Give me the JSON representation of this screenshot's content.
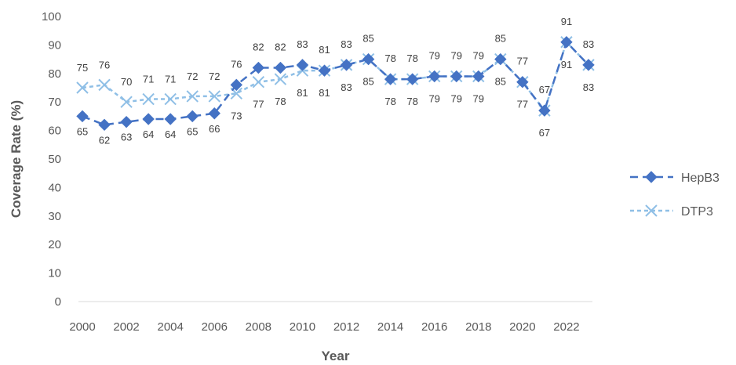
{
  "chart_data": {
    "type": "line",
    "title": "",
    "xlabel": "Year",
    "ylabel": "Coverage Rate (%)",
    "x": [
      2000,
      2001,
      2002,
      2003,
      2004,
      2005,
      2006,
      2007,
      2008,
      2009,
      2010,
      2011,
      2012,
      2013,
      2014,
      2015,
      2016,
      2017,
      2018,
      2019,
      2020,
      2021,
      2022,
      2023
    ],
    "x_tick_labels": [
      "2000",
      "2002",
      "2004",
      "2006",
      "2008",
      "2010",
      "2012",
      "2014",
      "2016",
      "2018",
      "2020",
      "2022"
    ],
    "y_tick_labels": [
      "0",
      "10",
      "20",
      "30",
      "40",
      "50",
      "60",
      "70",
      "80",
      "90",
      "100"
    ],
    "ylim": [
      0,
      100
    ],
    "grid": false,
    "legend_position": "right",
    "series": [
      {
        "name": "HepB3",
        "color": "#4472c4",
        "marker": "diamond",
        "line_style": "long-dash",
        "values": [
          65,
          62,
          63,
          64,
          64,
          65,
          66,
          76,
          82,
          82,
          83,
          81,
          83,
          85,
          78,
          78,
          79,
          79,
          79,
          85,
          77,
          67,
          91,
          83
        ]
      },
      {
        "name": "DTP3",
        "color": "#8fbfe6",
        "marker": "x",
        "line_style": "short-dash",
        "values": [
          75,
          76,
          70,
          71,
          71,
          72,
          72,
          73,
          77,
          78,
          81,
          81,
          83,
          85,
          78,
          78,
          79,
          79,
          79,
          85,
          77,
          67,
          91,
          83
        ]
      }
    ]
  }
}
